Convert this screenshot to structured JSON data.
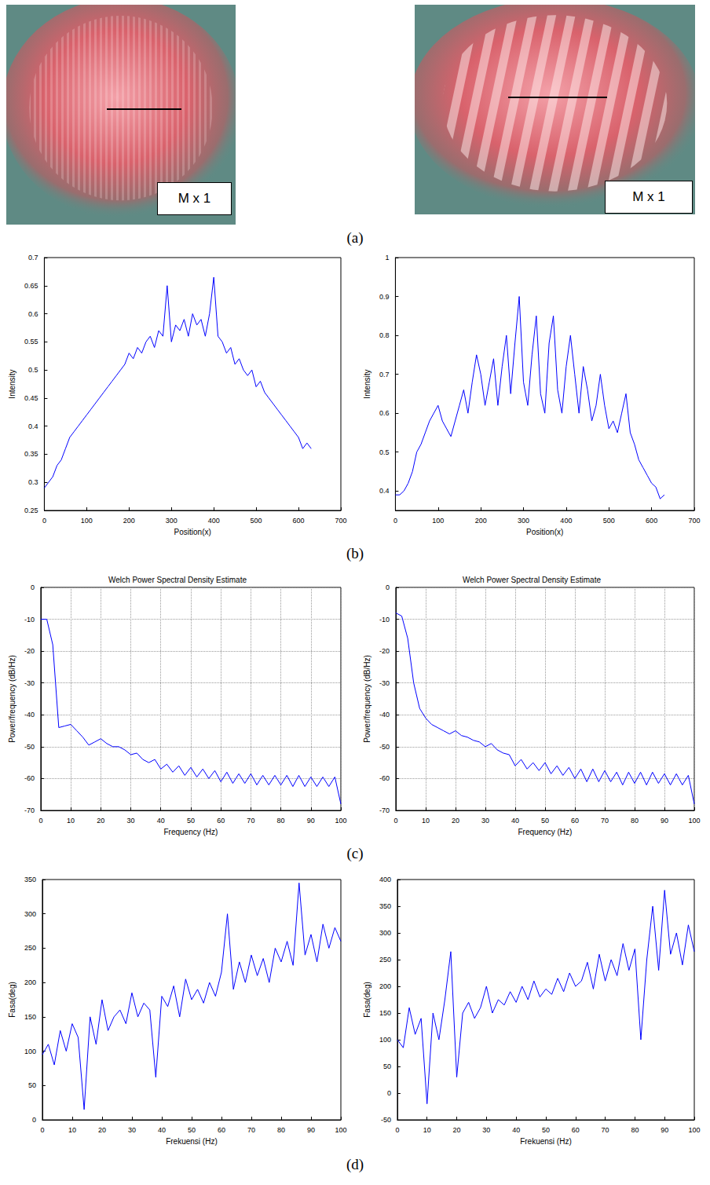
{
  "figure": {
    "panel_labels": [
      "(a)",
      "(b)",
      "(c)",
      "(d)"
    ],
    "photos": [
      {
        "caption": "M x 1"
      },
      {
        "caption": "M x 1"
      }
    ]
  },
  "chart_data": [
    {
      "type": "line",
      "x_label": "Position(x)",
      "y_label": "Intensity",
      "grid": false,
      "xlim": [
        0,
        700
      ],
      "xticks": [
        0,
        100,
        200,
        300,
        400,
        500,
        600,
        700
      ],
      "ylim": [
        0.25,
        0.7
      ],
      "yticks": [
        0.25,
        0.3,
        0.35,
        0.4,
        0.45,
        0.5,
        0.55,
        0.6,
        0.65,
        0.7
      ],
      "x": [
        0,
        10,
        20,
        30,
        40,
        50,
        60,
        70,
        80,
        90,
        100,
        110,
        120,
        130,
        140,
        150,
        160,
        170,
        180,
        190,
        200,
        210,
        220,
        230,
        240,
        250,
        260,
        270,
        280,
        290,
        300,
        310,
        320,
        330,
        340,
        350,
        360,
        370,
        380,
        390,
        400,
        410,
        420,
        430,
        440,
        450,
        460,
        470,
        480,
        490,
        500,
        510,
        520,
        530,
        540,
        550,
        560,
        570,
        580,
        590,
        600,
        610,
        620,
        630
      ],
      "series": [
        {
          "color": "#0000ff",
          "values": [
            0.29,
            0.3,
            0.31,
            0.33,
            0.34,
            0.36,
            0.38,
            0.39,
            0.4,
            0.41,
            0.42,
            0.43,
            0.44,
            0.45,
            0.46,
            0.47,
            0.48,
            0.49,
            0.5,
            0.51,
            0.53,
            0.52,
            0.54,
            0.53,
            0.55,
            0.56,
            0.54,
            0.57,
            0.56,
            0.65,
            0.55,
            0.58,
            0.57,
            0.59,
            0.56,
            0.6,
            0.58,
            0.59,
            0.56,
            0.6,
            0.665,
            0.56,
            0.55,
            0.53,
            0.54,
            0.51,
            0.52,
            0.5,
            0.49,
            0.5,
            0.47,
            0.48,
            0.46,
            0.45,
            0.44,
            0.43,
            0.42,
            0.41,
            0.4,
            0.39,
            0.38,
            0.36,
            0.37,
            0.36
          ]
        }
      ]
    },
    {
      "type": "line",
      "x_label": "Position(x)",
      "y_label": "Intensity",
      "grid": false,
      "xlim": [
        0,
        700
      ],
      "xticks": [
        0,
        100,
        200,
        300,
        400,
        500,
        600,
        700
      ],
      "ylim": [
        0.35,
        1
      ],
      "yticks": [
        0.4,
        0.5,
        0.6,
        0.7,
        0.8,
        0.9,
        1
      ],
      "x": [
        0,
        10,
        20,
        30,
        40,
        50,
        60,
        70,
        80,
        90,
        100,
        110,
        120,
        130,
        140,
        150,
        160,
        170,
        180,
        190,
        200,
        210,
        220,
        230,
        240,
        250,
        260,
        270,
        280,
        290,
        300,
        310,
        320,
        330,
        340,
        350,
        360,
        370,
        380,
        390,
        400,
        410,
        420,
        430,
        440,
        450,
        460,
        470,
        480,
        490,
        500,
        510,
        520,
        530,
        540,
        550,
        560,
        570,
        580,
        590,
        600,
        610,
        620,
        630
      ],
      "series": [
        {
          "color": "#0000ff",
          "values": [
            0.39,
            0.39,
            0.4,
            0.42,
            0.45,
            0.5,
            0.52,
            0.55,
            0.58,
            0.6,
            0.62,
            0.58,
            0.56,
            0.54,
            0.58,
            0.62,
            0.66,
            0.6,
            0.68,
            0.75,
            0.7,
            0.62,
            0.68,
            0.74,
            0.62,
            0.72,
            0.8,
            0.65,
            0.78,
            0.9,
            0.68,
            0.62,
            0.75,
            0.85,
            0.65,
            0.6,
            0.78,
            0.85,
            0.66,
            0.6,
            0.72,
            0.8,
            0.7,
            0.6,
            0.72,
            0.66,
            0.58,
            0.62,
            0.7,
            0.62,
            0.56,
            0.58,
            0.55,
            0.6,
            0.65,
            0.55,
            0.52,
            0.48,
            0.46,
            0.44,
            0.42,
            0.41,
            0.38,
            0.39
          ]
        }
      ]
    },
    {
      "type": "line",
      "title": "Welch Power Spectral Density Estimate",
      "x_label": "Frequency (Hz)",
      "y_label": "Power/frequency (dB/Hz)",
      "grid": true,
      "xlim": [
        0,
        100
      ],
      "xticks": [
        0,
        10,
        20,
        30,
        40,
        50,
        60,
        70,
        80,
        90,
        100
      ],
      "ylim": [
        -70,
        0
      ],
      "yticks": [
        -70,
        -60,
        -50,
        -40,
        -30,
        -20,
        -10,
        0
      ],
      "x": [
        0,
        2,
        4,
        6,
        8,
        10,
        12,
        14,
        16,
        18,
        20,
        22,
        24,
        26,
        28,
        30,
        32,
        34,
        36,
        38,
        40,
        42,
        44,
        46,
        48,
        50,
        52,
        54,
        56,
        58,
        60,
        62,
        64,
        66,
        68,
        70,
        72,
        74,
        76,
        78,
        80,
        82,
        84,
        86,
        88,
        90,
        92,
        94,
        96,
        98,
        100
      ],
      "series": [
        {
          "color": "#0000ff",
          "values": [
            -10,
            -10,
            -18,
            -44,
            -43.5,
            -43,
            -45,
            -47,
            -49.5,
            -48.5,
            -47.5,
            -49,
            -50,
            -50,
            -51,
            -52.5,
            -52,
            -54,
            -55,
            -54,
            -57,
            -55.5,
            -58,
            -56,
            -59,
            -56.5,
            -59.5,
            -57,
            -60,
            -57.5,
            -61,
            -58,
            -61.5,
            -58.5,
            -61.5,
            -58.5,
            -62,
            -59,
            -62,
            -59,
            -62,
            -59,
            -62.5,
            -59,
            -62.5,
            -59.5,
            -62.5,
            -59.5,
            -62.5,
            -59.5,
            -68
          ]
        }
      ]
    },
    {
      "type": "line",
      "title": "Welch Power Spectral Density Estimate",
      "x_label": "Frequency (Hz)",
      "y_label": "Power/frequency (dB/Hz)",
      "grid": true,
      "xlim": [
        0,
        100
      ],
      "xticks": [
        0,
        10,
        20,
        30,
        40,
        50,
        60,
        70,
        80,
        90,
        100
      ],
      "ylim": [
        -70,
        0
      ],
      "yticks": [
        -70,
        -60,
        -50,
        -40,
        -30,
        -20,
        -10,
        0
      ],
      "x": [
        0,
        2,
        4,
        6,
        8,
        10,
        12,
        14,
        16,
        18,
        20,
        22,
        24,
        26,
        28,
        30,
        32,
        34,
        36,
        38,
        40,
        42,
        44,
        46,
        48,
        50,
        52,
        54,
        56,
        58,
        60,
        62,
        64,
        66,
        68,
        70,
        72,
        74,
        76,
        78,
        80,
        82,
        84,
        86,
        88,
        90,
        92,
        94,
        96,
        98,
        100
      ],
      "series": [
        {
          "color": "#0000ff",
          "values": [
            -8,
            -9,
            -16,
            -30,
            -38,
            -41,
            -43,
            -44,
            -45,
            -46,
            -45,
            -46.5,
            -47,
            -48,
            -48.5,
            -50,
            -49,
            -51,
            -52,
            -52.5,
            -56,
            -54,
            -57,
            -55,
            -57.5,
            -55,
            -58.5,
            -56,
            -59,
            -56.5,
            -60,
            -57,
            -61,
            -57,
            -61,
            -57.5,
            -61,
            -58,
            -62,
            -58,
            -61.5,
            -58,
            -62,
            -58,
            -61.5,
            -58.5,
            -62,
            -58.5,
            -62,
            -59,
            -68
          ]
        }
      ]
    },
    {
      "type": "line",
      "x_label": "Frekuensi (Hz)",
      "y_label": "Fasa(deg)",
      "grid": false,
      "xlim": [
        0,
        100
      ],
      "xticks": [
        0,
        10,
        20,
        30,
        40,
        50,
        60,
        70,
        80,
        90,
        100
      ],
      "ylim": [
        0,
        350
      ],
      "yticks": [
        0,
        50,
        100,
        150,
        200,
        250,
        300,
        350
      ],
      "x": [
        0,
        2,
        4,
        6,
        8,
        10,
        12,
        14,
        16,
        18,
        20,
        22,
        24,
        26,
        28,
        30,
        32,
        34,
        36,
        38,
        40,
        42,
        44,
        46,
        48,
        50,
        52,
        54,
        56,
        58,
        60,
        62,
        64,
        66,
        68,
        70,
        72,
        74,
        76,
        78,
        80,
        82,
        84,
        86,
        88,
        90,
        92,
        94,
        96,
        98,
        100
      ],
      "series": [
        {
          "color": "#0000ff",
          "values": [
            95,
            110,
            80,
            130,
            100,
            140,
            120,
            15,
            150,
            110,
            175,
            130,
            150,
            160,
            140,
            185,
            150,
            170,
            160,
            62,
            180,
            165,
            195,
            150,
            205,
            175,
            190,
            170,
            200,
            180,
            215,
            300,
            190,
            230,
            200,
            240,
            210,
            235,
            200,
            250,
            230,
            260,
            225,
            345,
            240,
            270,
            230,
            285,
            250,
            280,
            260
          ]
        }
      ]
    },
    {
      "type": "line",
      "x_label": "Frekuensi (Hz)",
      "y_label": "Fasa(deg)",
      "grid": false,
      "xlim": [
        0,
        100
      ],
      "xticks": [
        0,
        10,
        20,
        30,
        40,
        50,
        60,
        70,
        80,
        90,
        100
      ],
      "ylim": [
        -50,
        400
      ],
      "yticks": [
        -50,
        0,
        50,
        100,
        150,
        200,
        250,
        300,
        350,
        400
      ],
      "x": [
        0,
        2,
        4,
        6,
        8,
        10,
        12,
        14,
        16,
        18,
        20,
        22,
        24,
        26,
        28,
        30,
        32,
        34,
        36,
        38,
        40,
        42,
        44,
        46,
        48,
        50,
        52,
        54,
        56,
        58,
        60,
        62,
        64,
        66,
        68,
        70,
        72,
        74,
        76,
        78,
        80,
        82,
        84,
        86,
        88,
        90,
        92,
        94,
        96,
        98,
        100
      ],
      "series": [
        {
          "color": "#0000ff",
          "values": [
            100,
            85,
            160,
            110,
            140,
            -20,
            150,
            100,
            175,
            265,
            30,
            150,
            170,
            140,
            160,
            200,
            150,
            175,
            165,
            190,
            170,
            200,
            175,
            210,
            180,
            195,
            185,
            215,
            190,
            225,
            200,
            210,
            245,
            195,
            260,
            210,
            250,
            220,
            280,
            230,
            270,
            100,
            250,
            350,
            230,
            380,
            260,
            300,
            240,
            315,
            265
          ]
        }
      ]
    }
  ]
}
